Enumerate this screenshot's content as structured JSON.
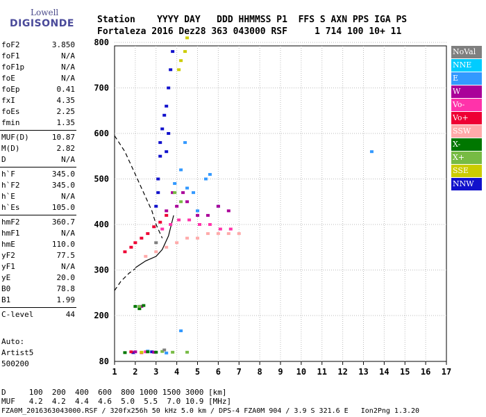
{
  "logo": {
    "top": "Lowell",
    "bottom": "DIGISONDE"
  },
  "header": {
    "line1": "Station    YYYY DAY   DDD HHMMSS P1  FFS S AXN PPS IGA PS",
    "line2": "Fortaleza 2016 Dez28 363 043000 RSF     1 714 100 10+ 11"
  },
  "params": [
    [
      {
        "label": "foF2",
        "value": "3.850"
      },
      {
        "label": "foF1",
        "value": "N/A"
      },
      {
        "label": "foF1p",
        "value": "N/A"
      },
      {
        "label": "foE",
        "value": "N/A"
      },
      {
        "label": "foEp",
        "value": "0.41"
      },
      {
        "label": "fxI",
        "value": "4.35"
      },
      {
        "label": "foEs",
        "value": "2.25"
      },
      {
        "label": "fmin",
        "value": "1.35"
      }
    ],
    [
      {
        "label": "MUF(D)",
        "value": "10.87"
      },
      {
        "label": "M(D)",
        "value": "2.82"
      },
      {
        "label": "D",
        "value": "N/A"
      }
    ],
    [
      {
        "label": "h`F",
        "value": "345.0"
      },
      {
        "label": "h`F2",
        "value": "345.0"
      },
      {
        "label": "h`E",
        "value": "N/A"
      },
      {
        "label": "h`Es",
        "value": "105.0"
      }
    ],
    [
      {
        "label": "hmF2",
        "value": "360.7"
      },
      {
        "label": "hmF1",
        "value": "N/A"
      },
      {
        "label": "hmE",
        "value": "110.0"
      },
      {
        "label": "yF2",
        "value": "77.5"
      },
      {
        "label": "yF1",
        "value": "N/A"
      },
      {
        "label": "yE",
        "value": "20.0"
      },
      {
        "label": "B0",
        "value": "78.8"
      },
      {
        "label": "B1",
        "value": "1.99"
      }
    ],
    [
      {
        "label": "C-level",
        "value": "44"
      }
    ]
  ],
  "auto": {
    "line1": "Auto:",
    "line2": "Artist5",
    "line3": "500200"
  },
  "legend": [
    {
      "label": "NoVal",
      "color": "#7f7f7f"
    },
    {
      "label": "NNE",
      "color": "#00ccff"
    },
    {
      "label": "E",
      "color": "#3399ff"
    },
    {
      "label": "W",
      "color": "#aa0099"
    },
    {
      "label": "Vo-",
      "color": "#ff33aa"
    },
    {
      "label": "Vo+",
      "color": "#ee0033"
    },
    {
      "label": "SSW",
      "color": "#ffaaaa"
    },
    {
      "label": "X-",
      "color": "#007700"
    },
    {
      "label": "X+",
      "color": "#77bb44"
    },
    {
      "label": "SSE",
      "color": "#cccc00"
    },
    {
      "label": "NNW",
      "color": "#1111cc"
    }
  ],
  "bottom": {
    "line1": "D     100  200  400  600  800 1000 1500 3000 [km]",
    "line2": "MUF   4.2  4.2  4.4  4.6  5.0  5.5  7.0 10.9 [MHz]"
  },
  "footer": "FZA0M_2016363043000.RSF / 320fx256h 50 kHz 5.0 km / DPS-4 FZA0M 904 / 3.9 S 321.6 E   Ion2Png 1.3.20",
  "chart_data": {
    "type": "scatter",
    "title": "",
    "xlabel": "",
    "ylabel": "",
    "xlim": [
      1,
      17
    ],
    "ylim": [
      80,
      900
    ],
    "xticks": [
      1,
      2,
      3,
      4,
      5,
      6,
      7,
      8,
      9,
      10,
      11,
      12,
      13,
      14,
      15,
      16,
      17
    ],
    "yticks": [
      80,
      200,
      300,
      400,
      500,
      600,
      700,
      800,
      900
    ],
    "grid": true,
    "series": [
      {
        "name": "NNW",
        "color": "#1111cc",
        "points": [
          [
            3.0,
            440
          ],
          [
            3.1,
            470
          ],
          [
            3.1,
            500
          ],
          [
            3.2,
            550
          ],
          [
            3.2,
            580
          ],
          [
            3.3,
            610
          ],
          [
            3.4,
            640
          ],
          [
            3.5,
            660
          ],
          [
            3.6,
            700
          ],
          [
            3.7,
            740
          ],
          [
            3.8,
            780
          ],
          [
            3.5,
            560
          ],
          [
            3.6,
            600
          ],
          [
            2.2,
            220
          ],
          [
            1.9,
            103
          ],
          [
            2.8,
            105
          ]
        ]
      },
      {
        "name": "E",
        "color": "#3399ff",
        "points": [
          [
            3.9,
            490
          ],
          [
            4.2,
            520
          ],
          [
            4.5,
            480
          ],
          [
            4.8,
            470
          ],
          [
            5.0,
            430
          ],
          [
            5.4,
            500
          ],
          [
            5.6,
            510
          ],
          [
            6.0,
            440
          ],
          [
            4.4,
            580
          ],
          [
            13.4,
            560
          ],
          [
            2.6,
            107
          ],
          [
            3.5,
            102
          ],
          [
            4.2,
            160
          ]
        ]
      },
      {
        "name": "W",
        "color": "#aa0099",
        "points": [
          [
            3.5,
            430
          ],
          [
            4.0,
            440
          ],
          [
            4.5,
            450
          ],
          [
            5.0,
            420
          ],
          [
            5.5,
            420
          ],
          [
            6.0,
            440
          ],
          [
            6.5,
            430
          ],
          [
            3.8,
            470
          ],
          [
            4.3,
            470
          ],
          [
            2.0,
            105
          ],
          [
            2.3,
            220
          ],
          [
            2.9,
            104
          ]
        ]
      },
      {
        "name": "Vo+",
        "color": "#ee0033",
        "points": [
          [
            1.5,
            340
          ],
          [
            1.8,
            350
          ],
          [
            2.0,
            360
          ],
          [
            2.3,
            370
          ],
          [
            2.6,
            380
          ],
          [
            2.9,
            395
          ],
          [
            3.2,
            405
          ],
          [
            3.5,
            420
          ],
          [
            1.8,
            105
          ],
          [
            2.3,
            103
          ]
        ]
      },
      {
        "name": "Vo-",
        "color": "#ff33aa",
        "points": [
          [
            3.3,
            390
          ],
          [
            3.7,
            400
          ],
          [
            4.1,
            410
          ],
          [
            4.6,
            410
          ],
          [
            5.1,
            400
          ],
          [
            5.6,
            400
          ],
          [
            6.1,
            390
          ],
          [
            6.6,
            390
          ],
          [
            2.5,
            105
          ]
        ]
      },
      {
        "name": "SSW",
        "color": "#ffaaaa",
        "points": [
          [
            3.5,
            350
          ],
          [
            4.0,
            360
          ],
          [
            4.5,
            370
          ],
          [
            5.0,
            370
          ],
          [
            5.5,
            380
          ],
          [
            6.0,
            380
          ],
          [
            6.5,
            380
          ],
          [
            7.0,
            380
          ],
          [
            2.5,
            330
          ],
          [
            3.0,
            340
          ]
        ]
      },
      {
        "name": "X-",
        "color": "#007700",
        "points": [
          [
            1.5,
            103
          ],
          [
            2.0,
            220
          ],
          [
            2.2,
            215
          ],
          [
            2.4,
            222
          ],
          [
            2.6,
            105
          ],
          [
            3.0,
            104
          ]
        ]
      },
      {
        "name": "X+",
        "color": "#77bb44",
        "points": [
          [
            2.2,
            220
          ],
          [
            3.3,
            106
          ],
          [
            3.8,
            104
          ],
          [
            4.5,
            104
          ],
          [
            3.9,
            470
          ],
          [
            4.2,
            450
          ]
        ]
      },
      {
        "name": "SSE",
        "color": "#cccc00",
        "points": [
          [
            4.2,
            760
          ],
          [
            4.4,
            780
          ],
          [
            4.1,
            740
          ],
          [
            4.5,
            810
          ],
          [
            2.3,
            104
          ]
        ]
      },
      {
        "name": "NoVal",
        "color": "#7f7f7f",
        "points": [
          [
            3.0,
            360
          ],
          [
            3.4,
            110
          ]
        ]
      }
    ],
    "traces": [
      {
        "style": "dashed",
        "x": [
          1.0,
          1.5,
          2.0,
          2.5,
          2.8,
          3.0,
          3.3
        ],
        "y": [
          595,
          560,
          510,
          460,
          430,
          400,
          370
        ]
      },
      {
        "style": "dashed",
        "x": [
          1.0,
          1.3,
          1.7,
          2.0
        ],
        "y": [
          255,
          275,
          293,
          303
        ]
      },
      {
        "style": "solid",
        "x": [
          2.0,
          2.5,
          3.0,
          3.3,
          3.6,
          3.85
        ],
        "y": [
          305,
          320,
          330,
          345,
          375,
          420
        ]
      }
    ]
  }
}
